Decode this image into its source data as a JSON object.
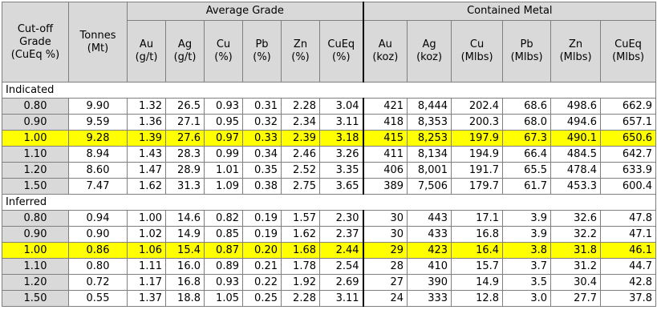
{
  "header": {
    "cutoff": "Cut-off Grade (CuEq %)",
    "tonnes": "Tonnes (Mt)",
    "average_grade": "Average Grade",
    "contained_metal": "Contained Metal",
    "grade_cols": [
      "Au (g/t)",
      "Ag (g/t)",
      "Cu (%)",
      "Pb (%)",
      "Zn (%)",
      "CuEq (%)"
    ],
    "metal_cols": [
      "Au (koz)",
      "Ag (koz)",
      "Cu (Mlbs)",
      "Pb (Mlbs)",
      "Zn (Mlbs)",
      "CuEq (Mlbs)"
    ]
  },
  "sections": [
    {
      "label": "Indicated",
      "rows": [
        {
          "cutoff": "0.80",
          "tonnes": "9.90",
          "grades": [
            "1.32",
            "26.5",
            "0.93",
            "0.31",
            "2.28",
            "3.04"
          ],
          "metal": [
            "421",
            "8,444",
            "202.4",
            "68.6",
            "498.6",
            "662.9"
          ],
          "highlight": false
        },
        {
          "cutoff": "0.90",
          "tonnes": "9.59",
          "grades": [
            "1.36",
            "27.1",
            "0.95",
            "0.32",
            "2.34",
            "3.11"
          ],
          "metal": [
            "418",
            "8,353",
            "200.3",
            "68.0",
            "494.6",
            "657.1"
          ],
          "highlight": false
        },
        {
          "cutoff": "1.00",
          "tonnes": "9.28",
          "grades": [
            "1.39",
            "27.6",
            "0.97",
            "0.33",
            "2.39",
            "3.18"
          ],
          "metal": [
            "415",
            "8,253",
            "197.9",
            "67.3",
            "490.1",
            "650.6"
          ],
          "highlight": true
        },
        {
          "cutoff": "1.10",
          "tonnes": "8.94",
          "grades": [
            "1.43",
            "28.3",
            "0.99",
            "0.34",
            "2.46",
            "3.26"
          ],
          "metal": [
            "411",
            "8,134",
            "194.9",
            "66.4",
            "484.5",
            "642.7"
          ],
          "highlight": false
        },
        {
          "cutoff": "1.20",
          "tonnes": "8.60",
          "grades": [
            "1.47",
            "28.9",
            "1.01",
            "0.35",
            "2.52",
            "3.35"
          ],
          "metal": [
            "406",
            "8,001",
            "191.7",
            "65.5",
            "478.4",
            "633.9"
          ],
          "highlight": false
        },
        {
          "cutoff": "1.50",
          "tonnes": "7.47",
          "grades": [
            "1.62",
            "31.3",
            "1.09",
            "0.38",
            "2.75",
            "3.65"
          ],
          "metal": [
            "389",
            "7,506",
            "179.7",
            "61.7",
            "453.3",
            "600.4"
          ],
          "highlight": false
        }
      ]
    },
    {
      "label": "Inferred",
      "rows": [
        {
          "cutoff": "0.80",
          "tonnes": "0.94",
          "grades": [
            "1.00",
            "14.6",
            "0.82",
            "0.19",
            "1.57",
            "2.30"
          ],
          "metal": [
            "30",
            "443",
            "17.1",
            "3.9",
            "32.6",
            "47.8"
          ],
          "highlight": false
        },
        {
          "cutoff": "0.90",
          "tonnes": "0.90",
          "grades": [
            "1.02",
            "14.9",
            "0.85",
            "0.19",
            "1.62",
            "2.37"
          ],
          "metal": [
            "30",
            "433",
            "16.8",
            "3.9",
            "32.2",
            "47.1"
          ],
          "highlight": false
        },
        {
          "cutoff": "1.00",
          "tonnes": "0.86",
          "grades": [
            "1.06",
            "15.4",
            "0.87",
            "0.20",
            "1.68",
            "2.44"
          ],
          "metal": [
            "29",
            "423",
            "16.4",
            "3.8",
            "31.8",
            "46.1"
          ],
          "highlight": true
        },
        {
          "cutoff": "1.10",
          "tonnes": "0.80",
          "grades": [
            "1.11",
            "16.0",
            "0.89",
            "0.21",
            "1.78",
            "2.54"
          ],
          "metal": [
            "28",
            "410",
            "15.7",
            "3.7",
            "31.2",
            "44.7"
          ],
          "highlight": false
        },
        {
          "cutoff": "1.20",
          "tonnes": "0.72",
          "grades": [
            "1.17",
            "16.8",
            "0.93",
            "0.22",
            "1.92",
            "2.69"
          ],
          "metal": [
            "27",
            "390",
            "14.9",
            "3.5",
            "30.4",
            "42.8"
          ],
          "highlight": false
        },
        {
          "cutoff": "1.50",
          "tonnes": "0.55",
          "grades": [
            "1.37",
            "18.8",
            "1.05",
            "0.25",
            "2.28",
            "3.11"
          ],
          "metal": [
            "24",
            "333",
            "12.8",
            "3.0",
            "27.7",
            "37.8"
          ],
          "highlight": false
        }
      ]
    }
  ]
}
